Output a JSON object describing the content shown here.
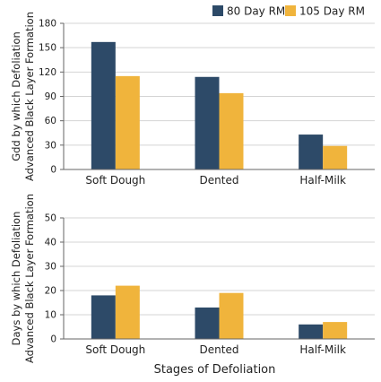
{
  "chart_data": [
    {
      "type": "bar",
      "categories": [
        "Soft Dough",
        "Dented",
        "Half-Milk"
      ],
      "series": [
        {
          "name": "80 Day RM",
          "values": [
            157,
            114,
            43
          ]
        },
        {
          "name": "105 Day RM",
          "values": [
            115,
            94,
            29
          ]
        }
      ],
      "ylabel_lines": [
        "Gdd by which Defoliation",
        "Advanced Black Layer Formation"
      ],
      "ylim": [
        0,
        180
      ],
      "yticks": [
        0,
        30,
        60,
        90,
        120,
        150,
        180
      ],
      "grid": true,
      "legend": "top-right"
    },
    {
      "type": "bar",
      "categories": [
        "Soft Dough",
        "Dented",
        "Half-Milk"
      ],
      "series": [
        {
          "name": "80 Day RM",
          "values": [
            18,
            13,
            6
          ]
        },
        {
          "name": "105 Day RM",
          "values": [
            22,
            19,
            7
          ]
        }
      ],
      "ylabel_lines": [
        "Days by which Defoliation",
        "Advanced Black Layer Formation"
      ],
      "xlabel": "Stages of Defoliation",
      "ylim": [
        0,
        50
      ],
      "yticks": [
        0,
        10,
        20,
        30,
        40,
        50
      ],
      "grid": true
    }
  ],
  "colors": {
    "series": [
      "#2d4a68",
      "#f0b43c"
    ],
    "grid": "#d4d4d4",
    "axis": "#666666"
  }
}
